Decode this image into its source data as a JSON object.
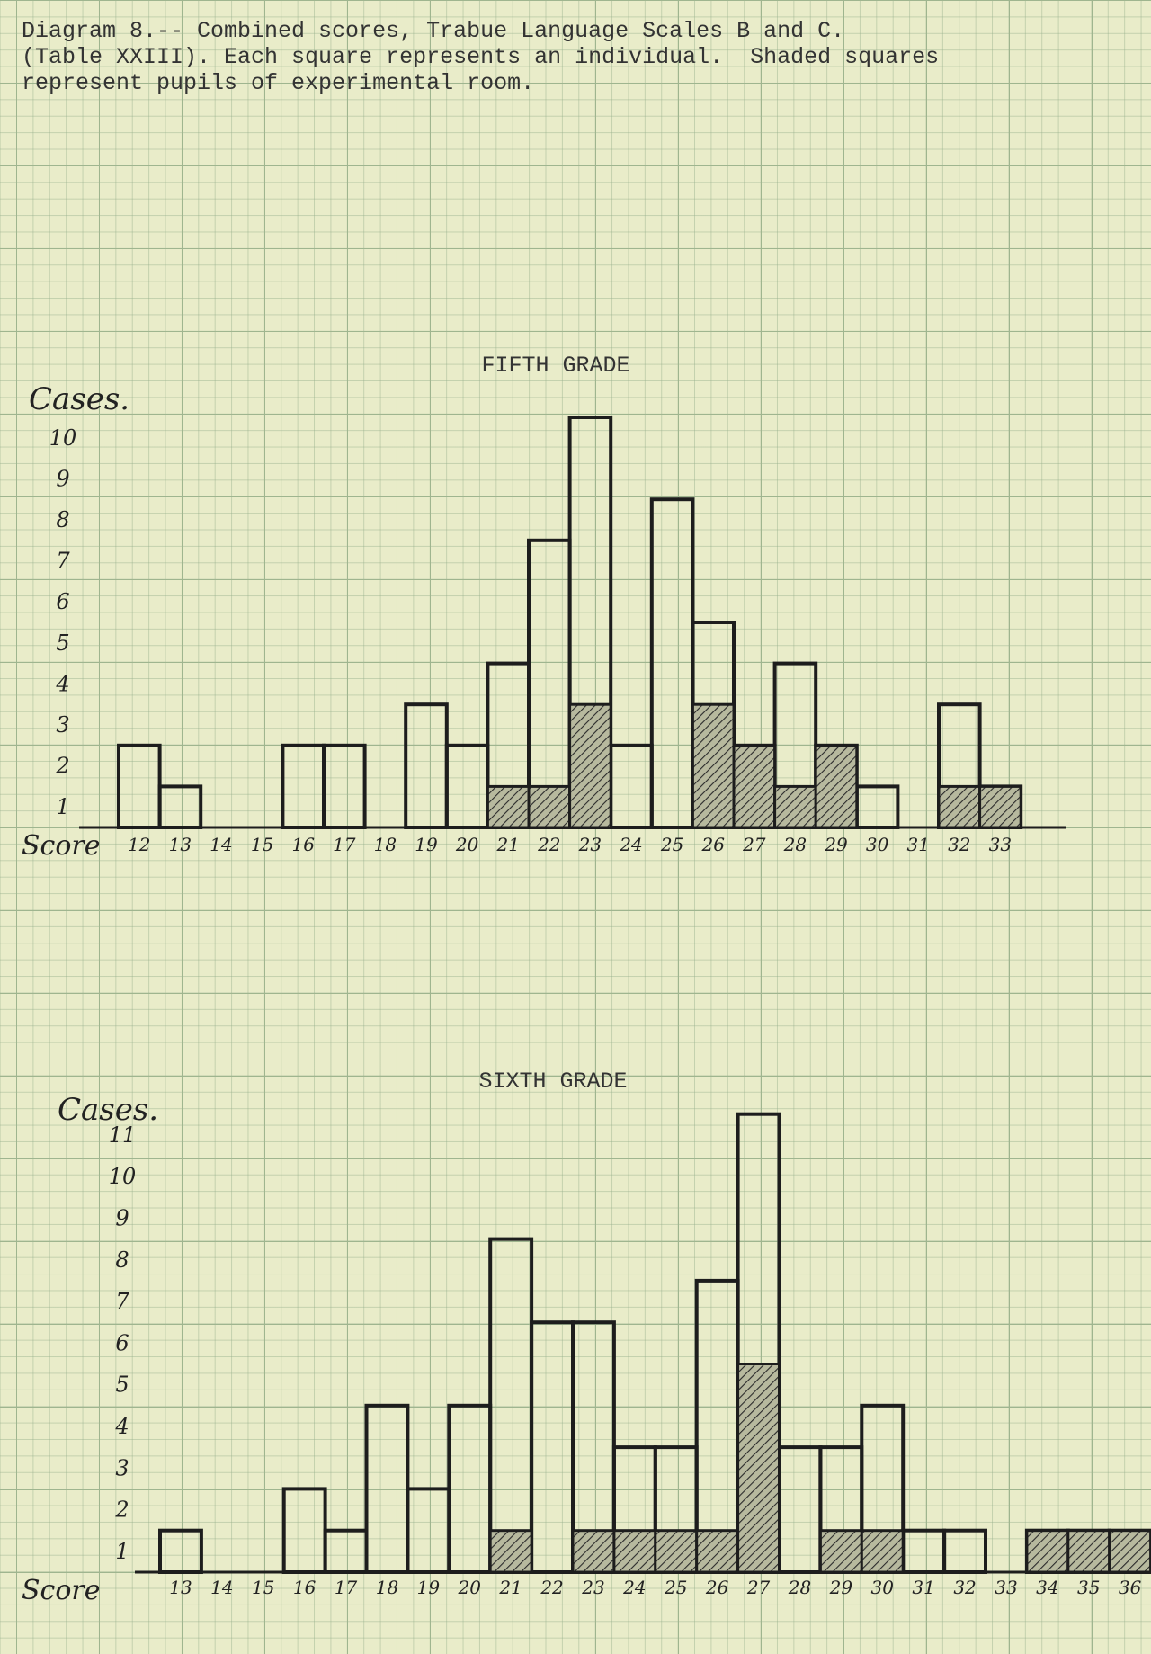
{
  "caption": "Diagram 8.-- Combined scores, Trabue Language Scales B and C.\n(Table XXIII). Each square represents an individual.  Shaded squares\nrepresent pupils of experimental room.",
  "chart_data": [
    {
      "type": "bar",
      "title": "FIFTH GRADE",
      "ylabel": "Cases.",
      "xlabel": "Score",
      "y_ticks": [
        "1",
        "2",
        "3",
        "4",
        "5",
        "6",
        "7",
        "8",
        "9",
        "10"
      ],
      "x_ticks": [
        "12",
        "13",
        "14",
        "15",
        "16",
        "17",
        "18",
        "19",
        "20",
        "21",
        "22",
        "23",
        "24",
        "25",
        "26",
        "27",
        "28",
        "29",
        "30",
        "31",
        "32",
        "33"
      ],
      "x": [
        12,
        13,
        14,
        15,
        16,
        17,
        18,
        19,
        20,
        21,
        22,
        23,
        24,
        25,
        26,
        27,
        28,
        29,
        30,
        31,
        32,
        33
      ],
      "series": [
        {
          "values": [
            2,
            1,
            0,
            0,
            2,
            2,
            0,
            3,
            2,
            4,
            7,
            10,
            2,
            8,
            5,
            2,
            4,
            2,
            1,
            0,
            3,
            1
          ]
        },
        {
          "values": [
            0,
            0,
            0,
            0,
            0,
            0,
            0,
            0,
            0,
            1,
            1,
            3,
            0,
            0,
            3,
            2,
            1,
            2,
            0,
            0,
            1,
            1
          ]
        }
      ],
      "ylim": [
        0,
        10
      ]
    },
    {
      "type": "bar",
      "title": "SIXTH GRADE",
      "ylabel": "Cases.",
      "xlabel": "Score",
      "y_ticks": [
        "1",
        "2",
        "3",
        "4",
        "5",
        "6",
        "7",
        "8",
        "9",
        "10",
        "11"
      ],
      "x_ticks": [
        "13",
        "14",
        "15",
        "16",
        "17",
        "18",
        "19",
        "20",
        "21",
        "22",
        "23",
        "24",
        "25",
        "26",
        "27",
        "28",
        "29",
        "30",
        "31",
        "32",
        "33",
        "34",
        "35",
        "36"
      ],
      "x": [
        13,
        14,
        15,
        16,
        17,
        18,
        19,
        20,
        21,
        22,
        23,
        24,
        25,
        26,
        27,
        28,
        29,
        30,
        31,
        32,
        33,
        34,
        35,
        36
      ],
      "series": [
        {
          "values": [
            1,
            0,
            0,
            2,
            1,
            4,
            2,
            4,
            8,
            6,
            6,
            3,
            3,
            7,
            11,
            3,
            3,
            4,
            1,
            1,
            0,
            1,
            1,
            1
          ]
        },
        {
          "values": [
            0,
            0,
            0,
            0,
            0,
            0,
            0,
            0,
            1,
            0,
            1,
            1,
            1,
            1,
            5,
            0,
            1,
            1,
            0,
            0,
            0,
            1,
            1,
            1
          ]
        }
      ],
      "ylim": [
        0,
        11
      ]
    }
  ]
}
